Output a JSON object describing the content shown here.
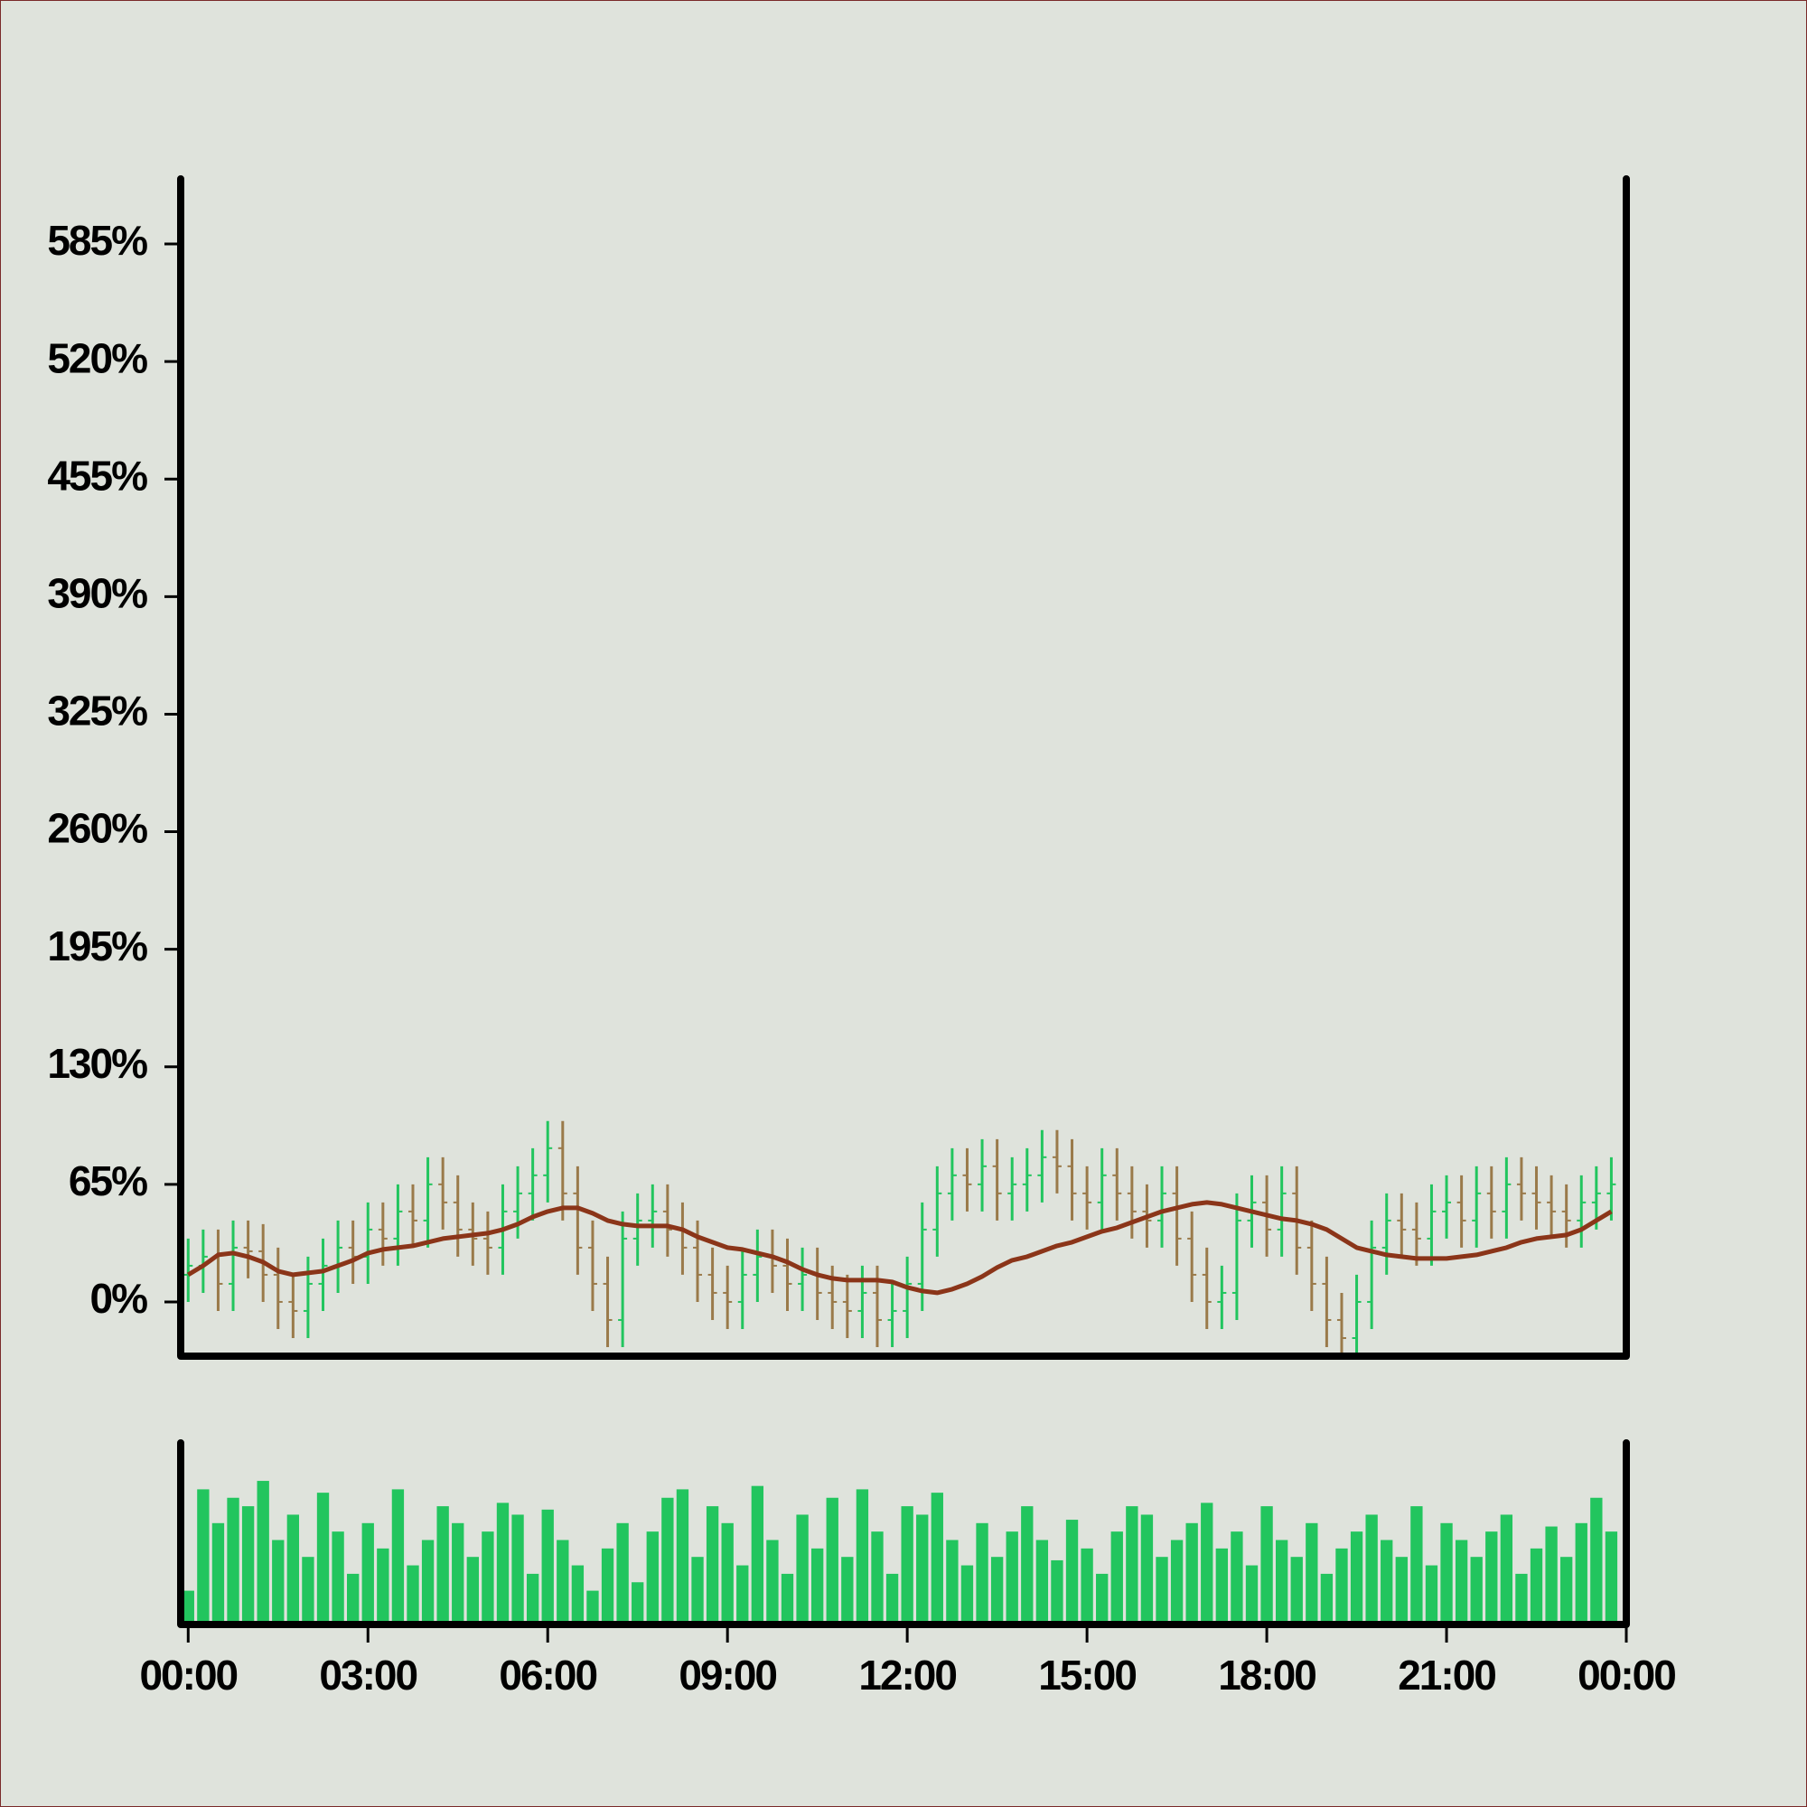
{
  "chart_data": {
    "type": "ohlc",
    "x": [
      0,
      0.25,
      0.5,
      0.75,
      1,
      1.25,
      1.5,
      1.75,
      2,
      2.25,
      2.5,
      2.75,
      3,
      3.25,
      3.5,
      3.75,
      4,
      4.25,
      4.5,
      4.75,
      5,
      5.25,
      5.5,
      5.75,
      6,
      6.25,
      6.5,
      6.75,
      7,
      7.25,
      7.5,
      7.75,
      8,
      8.25,
      8.5,
      8.75,
      9,
      9.25,
      9.5,
      9.75,
      10,
      10.25,
      10.5,
      10.75,
      11,
      11.25,
      11.5,
      11.75,
      12,
      12.25,
      12.5,
      12.75,
      13,
      13.25,
      13.5,
      13.75,
      14,
      14.25,
      14.5,
      14.75,
      15,
      15.25,
      15.5,
      15.75,
      16,
      16.25,
      16.5,
      16.75,
      17,
      17.25,
      17.5,
      17.75,
      18,
      18.25,
      18.5,
      18.75,
      19,
      19.25,
      19.5,
      19.75,
      20,
      20.25,
      20.5,
      20.75,
      21,
      21.25,
      21.5,
      21.75,
      22,
      22.25,
      22.5,
      22.75,
      23,
      23.25,
      23.5,
      23.75
    ],
    "open": [
      15,
      20,
      25,
      10,
      30,
      28,
      15,
      0,
      -5,
      10,
      20,
      30,
      25,
      40,
      35,
      50,
      45,
      65,
      55,
      40,
      35,
      30,
      50,
      60,
      70,
      85,
      60,
      30,
      10,
      -10,
      35,
      45,
      50,
      40,
      30,
      15,
      5,
      0,
      15,
      25,
      20,
      10,
      15,
      5,
      0,
      -5,
      5,
      -10,
      -5,
      10,
      40,
      60,
      70,
      65,
      75,
      60,
      65,
      70,
      80,
      75,
      60,
      55,
      70,
      60,
      50,
      45,
      60,
      35,
      15,
      0,
      5,
      45,
      55,
      40,
      60,
      30,
      10,
      -10,
      -20,
      0,
      30,
      45,
      40,
      35,
      50,
      55,
      45,
      60,
      50,
      65,
      60,
      55,
      50,
      45,
      55,
      60
    ],
    "high": [
      35,
      40,
      40,
      45,
      45,
      43,
      30,
      15,
      25,
      35,
      45,
      45,
      55,
      55,
      65,
      65,
      80,
      80,
      70,
      55,
      50,
      65,
      75,
      85,
      100,
      100,
      75,
      45,
      25,
      50,
      60,
      65,
      65,
      55,
      45,
      30,
      20,
      30,
      40,
      40,
      35,
      30,
      30,
      20,
      15,
      20,
      20,
      10,
      25,
      55,
      75,
      85,
      85,
      90,
      90,
      80,
      85,
      95,
      95,
      90,
      75,
      85,
      85,
      75,
      65,
      75,
      75,
      50,
      30,
      20,
      60,
      70,
      70,
      75,
      75,
      45,
      25,
      5,
      15,
      45,
      60,
      60,
      55,
      65,
      70,
      70,
      75,
      75,
      80,
      80,
      75,
      70,
      65,
      70,
      75,
      80
    ],
    "low": [
      0,
      5,
      -5,
      -5,
      13,
      0,
      -15,
      -20,
      -20,
      -5,
      5,
      10,
      10,
      20,
      20,
      30,
      30,
      40,
      25,
      20,
      15,
      15,
      35,
      45,
      55,
      45,
      15,
      -5,
      -25,
      -25,
      20,
      30,
      25,
      15,
      0,
      -10,
      -15,
      -15,
      0,
      5,
      -5,
      -5,
      -10,
      -15,
      -20,
      -20,
      -25,
      -25,
      -20,
      -5,
      25,
      45,
      50,
      50,
      45,
      45,
      50,
      55,
      60,
      45,
      40,
      40,
      45,
      35,
      30,
      30,
      20,
      0,
      -15,
      -15,
      -10,
      30,
      25,
      25,
      15,
      -5,
      -25,
      -30,
      -30,
      -15,
      15,
      25,
      20,
      20,
      35,
      30,
      30,
      35,
      35,
      45,
      40,
      35,
      30,
      30,
      40,
      45
    ],
    "close": [
      20,
      25,
      10,
      30,
      28,
      15,
      0,
      -5,
      10,
      20,
      30,
      25,
      40,
      35,
      50,
      45,
      65,
      55,
      40,
      35,
      30,
      50,
      60,
      70,
      85,
      60,
      30,
      10,
      -10,
      35,
      45,
      50,
      40,
      30,
      15,
      5,
      0,
      15,
      25,
      20,
      10,
      15,
      5,
      0,
      -5,
      5,
      -10,
      -5,
      10,
      40,
      60,
      70,
      65,
      75,
      60,
      65,
      70,
      80,
      75,
      60,
      55,
      70,
      60,
      50,
      45,
      60,
      35,
      15,
      0,
      5,
      45,
      55,
      40,
      60,
      30,
      10,
      -10,
      -20,
      0,
      30,
      45,
      40,
      35,
      50,
      55,
      45,
      60,
      50,
      65,
      60,
      55,
      50,
      45,
      55,
      60,
      65
    ],
    "up_color": "#22c55e",
    "down_color": "#9a7a4a",
    "ma": {
      "color": "#8b3519",
      "values": [
        15,
        20,
        26,
        27,
        25,
        22,
        17,
        15,
        16,
        17,
        20,
        23,
        27,
        29,
        30,
        31,
        33,
        35,
        36,
        37,
        38,
        40,
        43,
        47,
        50,
        52,
        52,
        49,
        45,
        43,
        42,
        42,
        42,
        40,
        36,
        33,
        30,
        29,
        27,
        25,
        22,
        18,
        15,
        13,
        12,
        12,
        12,
        11,
        8,
        6,
        5,
        7,
        10,
        14,
        19,
        23,
        25,
        28,
        31,
        33,
        36,
        39,
        41,
        44,
        47,
        50,
        52,
        54,
        55,
        54,
        52,
        50,
        48,
        46,
        45,
        43,
        40,
        35,
        30,
        28,
        26,
        25,
        24,
        24,
        24,
        25,
        26,
        28,
        30,
        33,
        35,
        36,
        37,
        40,
        45,
        50
      ]
    },
    "volume": {
      "color": "#22c55e",
      "ylim": [
        0,
        100
      ],
      "values": [
        20,
        80,
        60,
        75,
        70,
        85,
        50,
        65,
        40,
        78,
        55,
        30,
        60,
        45,
        80,
        35,
        50,
        70,
        60,
        40,
        55,
        72,
        65,
        30,
        68,
        50,
        35,
        20,
        45,
        60,
        25,
        55,
        75,
        80,
        40,
        70,
        60,
        35,
        82,
        50,
        30,
        65,
        45,
        75,
        40,
        80,
        55,
        30,
        70,
        65,
        78,
        50,
        35,
        60,
        40,
        55,
        70,
        50,
        38,
        62,
        45,
        30,
        55,
        70,
        65,
        40,
        50,
        60,
        72,
        45,
        55,
        35,
        70,
        50,
        40,
        60,
        30,
        45,
        55,
        65,
        50,
        40,
        70,
        35,
        60,
        50,
        40,
        55,
        65,
        30,
        45,
        58,
        40,
        60,
        75,
        55
      ]
    },
    "xlim": [
      -0.125,
      24
    ],
    "xticks": [
      {
        "value": 0,
        "label": "00:00"
      },
      {
        "value": 3,
        "label": "03:00"
      },
      {
        "value": 6,
        "label": "06:00"
      },
      {
        "value": 9,
        "label": "09:00"
      },
      {
        "value": 12,
        "label": "12:00"
      },
      {
        "value": 15,
        "label": "15:00"
      },
      {
        "value": 18,
        "label": "18:00"
      },
      {
        "value": 21,
        "label": "21:00"
      },
      {
        "value": 24,
        "label": "00:00"
      }
    ],
    "ylim": [
      -30,
      621
    ],
    "yticks": [
      {
        "value": 0,
        "label": "0%"
      },
      {
        "value": 65,
        "label": "65%"
      },
      {
        "value": 130,
        "label": "130%"
      },
      {
        "value": 195,
        "label": "195%"
      },
      {
        "value": 260,
        "label": "260%"
      },
      {
        "value": 325,
        "label": "325%"
      },
      {
        "value": 390,
        "label": "390%"
      },
      {
        "value": 455,
        "label": "455%"
      },
      {
        "value": 520,
        "label": "520%"
      },
      {
        "value": 585,
        "label": "585%"
      }
    ]
  }
}
